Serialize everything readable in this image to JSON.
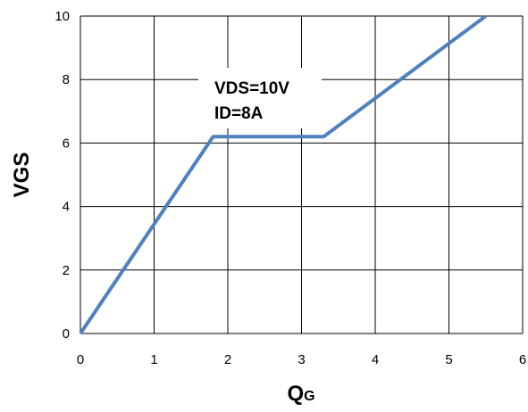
{
  "chart_data": {
    "type": "line",
    "xlabel_main": "Q",
    "xlabel_sub": "G",
    "ylabel": "VGS",
    "xlim": [
      0,
      6
    ],
    "ylim": [
      0,
      10
    ],
    "x_ticks": [
      0,
      1,
      2,
      3,
      4,
      5,
      6
    ],
    "y_ticks": [
      0,
      2,
      4,
      6,
      8,
      10
    ],
    "grid": true,
    "series": [
      {
        "x": [
          0,
          1.8,
          3.3,
          5.5
        ],
        "y": [
          0,
          6.2,
          6.2,
          10
        ],
        "color": "#4f81bd"
      }
    ],
    "annotations": [
      {
        "text": "VDS=10V"
      },
      {
        "text": "ID=8A"
      }
    ],
    "colors": {
      "line": "#4f81bd",
      "grid": "#000000",
      "background": "#ffffff"
    }
  }
}
